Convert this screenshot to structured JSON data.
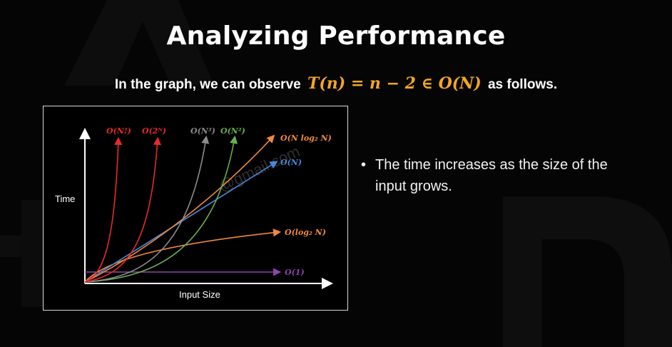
{
  "slide": {
    "title": "Analyzing Performance",
    "subtitle_pre": "In the graph, we can observe",
    "subtitle_formula": "T(n) = n − 2 ∈ O(N)",
    "subtitle_post": "as follows.",
    "accent_color": "#f5a623"
  },
  "diagram": {
    "y_axis_label": "Time",
    "x_axis_label": "Input Size",
    "curves": [
      {
        "label": "O(N!)",
        "color": "#e8292b"
      },
      {
        "label": "O(2ᴺ)",
        "color": "#e8292b"
      },
      {
        "label": "O(N³)",
        "color": "#8c8c8c"
      },
      {
        "label": "O(N²)",
        "color": "#6ab04c"
      },
      {
        "label": "O(N log₂ N)",
        "color": "#f08a3c"
      },
      {
        "label": "O(N)",
        "color": "#4a86d6"
      },
      {
        "label": "O(log₂ N)",
        "color": "#f08a3c"
      },
      {
        "label": "O(1)",
        "color": "#8e44ad"
      }
    ],
    "watermark": "@gmail.com"
  },
  "bullets": [
    {
      "bullet": "•",
      "text": "The time increases as the size of the input grows."
    }
  ]
}
